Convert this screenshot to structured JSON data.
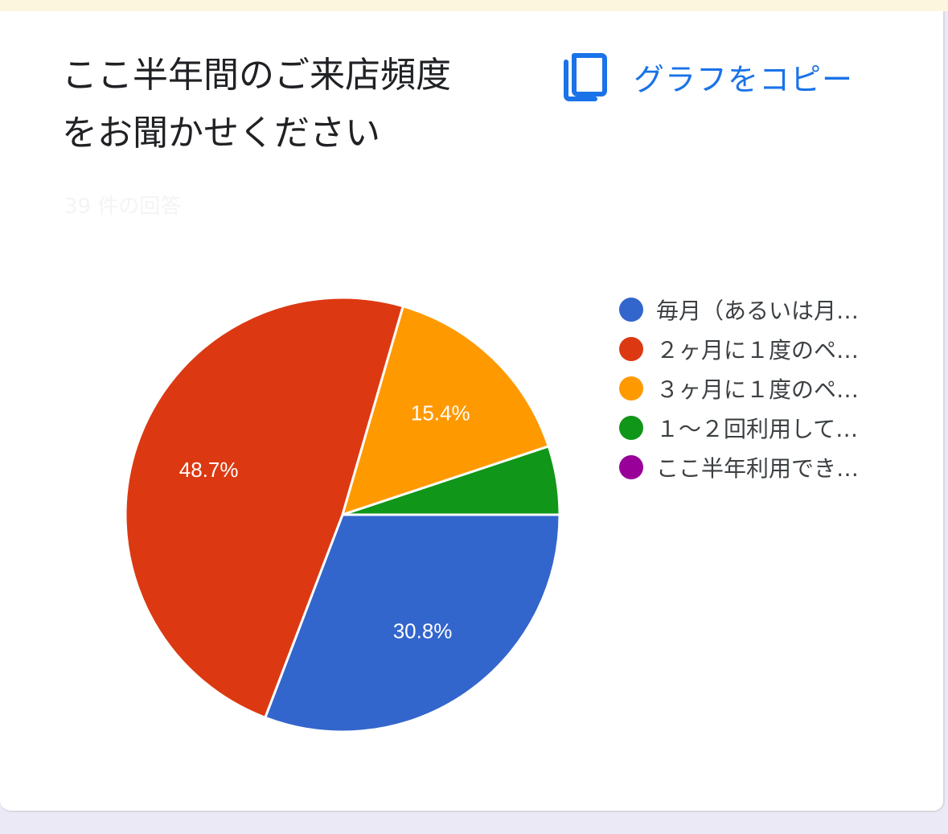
{
  "card": {
    "title": "ここ半年間のご来店頻度\nをお聞かせください",
    "subtitle": "39 件の回答",
    "copy_label": "グラフをコピー",
    "copy_icon": "copy-icon"
  },
  "chart_data": {
    "type": "pie",
    "slices": [
      {
        "label": "毎月（あるいは月…",
        "value": 30.8,
        "color": "#3366cc",
        "display": "30.8%"
      },
      {
        "label": "２ヶ月に１度のペ…",
        "value": 48.7,
        "color": "#dc3912",
        "display": "48.7%"
      },
      {
        "label": "３ヶ月に１度のペ…",
        "value": 15.4,
        "color": "#ff9900",
        "display": "15.4%"
      },
      {
        "label": "１〜２回利用して…",
        "value": 5.1,
        "color": "#109618",
        "display": ""
      },
      {
        "label": "ここ半年利用でき…",
        "value": 0,
        "color": "#990099",
        "display": ""
      }
    ],
    "legend_position": "right"
  }
}
